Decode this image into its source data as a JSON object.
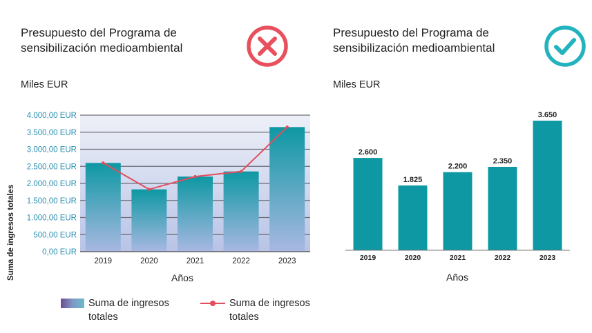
{
  "panels": {
    "left": {
      "title_line1": "Presupuesto del Programa de",
      "title_line2": "sensibilización medioambiental",
      "units": "Miles  EUR",
      "badge_icon": "cross-icon"
    },
    "right": {
      "title_line1": "Presupuesto del Programa de",
      "title_line2": "sensibilización medioambiental",
      "units": "Miles  EUR",
      "badge_icon": "checkmark-icon"
    }
  },
  "legend": {
    "bar_label": "Suma de ingresos totales",
    "line_label": "Suma de ingresos totales"
  },
  "colors": {
    "bar_teal": "#0e98a3",
    "bar_fade": "#a9b8e2",
    "line_red": "#e24e5c",
    "cross_red": "#e8505d",
    "check_teal": "#22b3bf",
    "axis_blue": "#2a8fb0"
  },
  "chart_data": [
    {
      "type": "bar",
      "overlay": "line",
      "categories": [
        "2019",
        "2020",
        "2021",
        "2022",
        "2023"
      ],
      "series": [
        {
          "name": "Suma de ingresos totales",
          "values": [
            2600,
            1825,
            2200,
            2350,
            3650
          ],
          "kind": "bar"
        },
        {
          "name": "Suma de ingresos totales",
          "values": [
            2600,
            1825,
            2200,
            2350,
            3650
          ],
          "kind": "line"
        }
      ],
      "xlabel": "Años",
      "ylabel": "Suma de ingresos totales",
      "ylim": [
        0,
        4000
      ],
      "yticks": [
        0,
        500,
        1000,
        1500,
        2000,
        2500,
        3000,
        3500,
        4000
      ],
      "ytick_labels": [
        "0,00 EUR",
        "500,00 EUR",
        "1.000,00 EUR",
        "1.500,00 EUR",
        "2.000,00 EUR",
        "2.500,00 EUR",
        "3.000,00 EUR",
        "3.500,00 EUR",
        "4.000,00 EUR"
      ],
      "grid": true,
      "legend": "bottom"
    },
    {
      "type": "bar",
      "categories": [
        "2019",
        "2020",
        "2021",
        "2022",
        "2023"
      ],
      "values": [
        2600,
        1825,
        2200,
        2350,
        3650
      ],
      "data_labels": [
        "2.600",
        "1.825",
        "2.200",
        "2.350",
        "3.650"
      ],
      "xlabel": "Años",
      "ylim": [
        0,
        4000
      ],
      "grid": false
    }
  ]
}
